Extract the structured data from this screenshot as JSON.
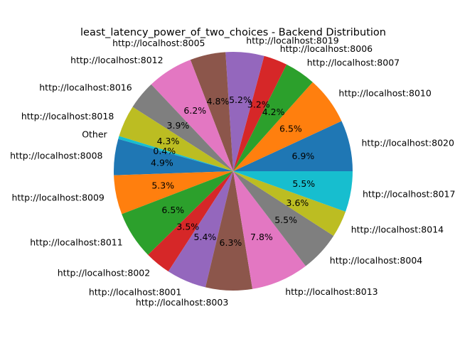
{
  "chart_data": {
    "type": "pie",
    "title": "least_latency_power_of_two_choices - Backend Distribution",
    "start_angle_deg": 0,
    "direction": "counterclockwise",
    "slices": [
      {
        "label": "http://localhost:8020",
        "value": 6.9,
        "pct_label": "6.9%",
        "color": "#1f77b4"
      },
      {
        "label": "http://localhost:8010",
        "value": 6.5,
        "pct_label": "6.5%",
        "color": "#ff7f0e"
      },
      {
        "label": "http://localhost:8007",
        "value": 4.2,
        "pct_label": "4.2%",
        "color": "#2ca02c"
      },
      {
        "label": "http://localhost:8006",
        "value": 3.2,
        "pct_label": "3.2%",
        "color": "#d62728"
      },
      {
        "label": "http://localhost:8019",
        "value": 5.2,
        "pct_label": "5.2%",
        "color": "#9467bd"
      },
      {
        "label": "http://localhost:8005",
        "value": 4.8,
        "pct_label": "4.8%",
        "color": "#8c564b"
      },
      {
        "label": "http://localhost:8012",
        "value": 6.2,
        "pct_label": "6.2%",
        "color": "#e377c2"
      },
      {
        "label": "http://localhost:8016",
        "value": 3.9,
        "pct_label": "3.9%",
        "color": "#7f7f7f"
      },
      {
        "label": "http://localhost:8018",
        "value": 4.3,
        "pct_label": "4.3%",
        "color": "#bcbd22"
      },
      {
        "label": "Other",
        "value": 0.4,
        "pct_label": "0.4%",
        "color": "#17becf"
      },
      {
        "label": "http://localhost:8008",
        "value": 4.9,
        "pct_label": "4.9%",
        "color": "#1f77b4"
      },
      {
        "label": "http://localhost:8009",
        "value": 5.3,
        "pct_label": "5.3%",
        "color": "#ff7f0e"
      },
      {
        "label": "http://localhost:8011",
        "value": 6.5,
        "pct_label": "6.5%",
        "color": "#2ca02c"
      },
      {
        "label": "http://localhost:8002",
        "value": 3.5,
        "pct_label": "3.5%",
        "color": "#d62728"
      },
      {
        "label": "http://localhost:8001",
        "value": 5.4,
        "pct_label": "5.4%",
        "color": "#9467bd"
      },
      {
        "label": "http://localhost:8003",
        "value": 6.3,
        "pct_label": "6.3%",
        "color": "#8c564b"
      },
      {
        "label": "http://localhost:8013",
        "value": 7.8,
        "pct_label": "7.8%",
        "color": "#e377c2"
      },
      {
        "label": "http://localhost:8004",
        "value": 5.5,
        "pct_label": "5.5%",
        "color": "#7f7f7f"
      },
      {
        "label": "http://localhost:8014",
        "value": 3.6,
        "pct_label": "3.6%",
        "color": "#bcbd22"
      },
      {
        "label": "http://localhost:8017",
        "value": 5.5,
        "pct_label": "5.5%",
        "color": "#17becf"
      }
    ]
  }
}
